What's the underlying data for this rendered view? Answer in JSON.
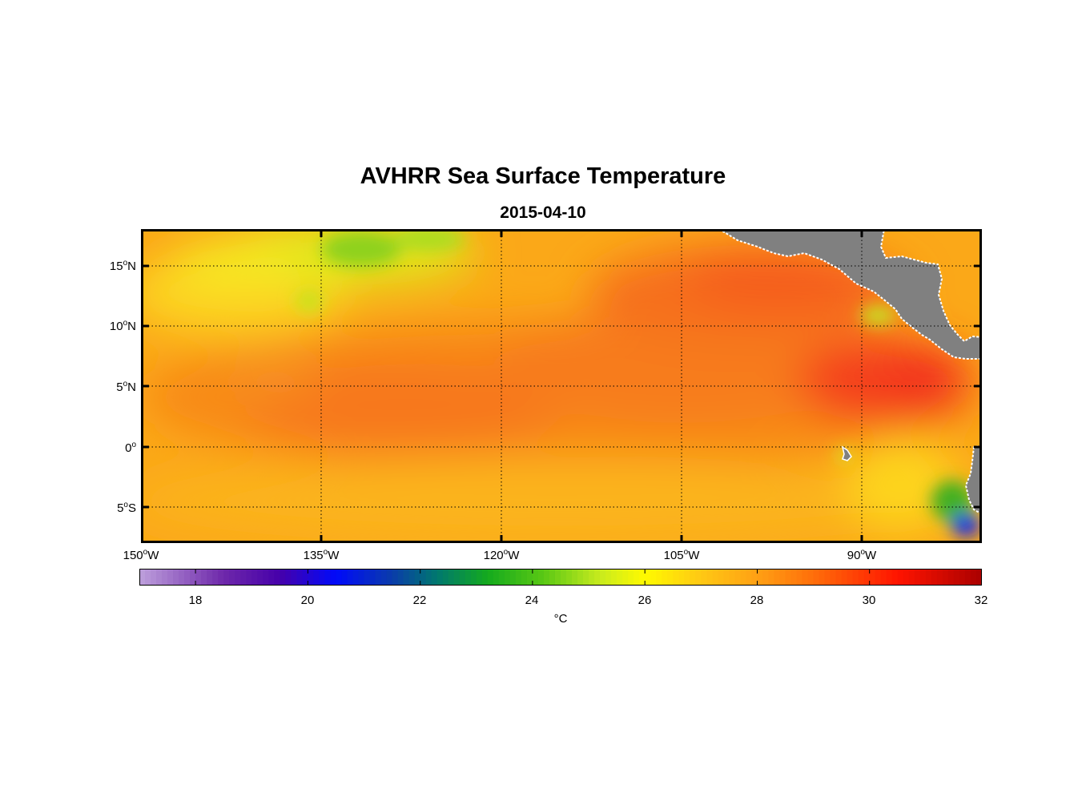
{
  "title": "AVHRR Sea Surface Temperature",
  "subtitle": "2015-04-10",
  "axes": {
    "lat_ticks": [
      {
        "deg": "15",
        "hemi": "N",
        "value": 15
      },
      {
        "deg": "10",
        "hemi": "N",
        "value": 10
      },
      {
        "deg": "5",
        "hemi": "N",
        "value": 5
      },
      {
        "deg": "0",
        "hemi": "",
        "value": 0
      },
      {
        "deg": "5",
        "hemi": "S",
        "value": -5
      }
    ],
    "lon_ticks": [
      {
        "deg": "150",
        "hemi": "W",
        "value": -150
      },
      {
        "deg": "135",
        "hemi": "W",
        "value": -135
      },
      {
        "deg": "120",
        "hemi": "W",
        "value": -120
      },
      {
        "deg": "105",
        "hemi": "W",
        "value": -105
      },
      {
        "deg": "90",
        "hemi": "W",
        "value": -90
      }
    ],
    "degree_symbol": "o",
    "lat_range": [
      -8,
      18
    ],
    "lon_range": [
      -150,
      -80
    ]
  },
  "colorbar": {
    "range": [
      17,
      32
    ],
    "tick_labels": [
      "18",
      "20",
      "22",
      "24",
      "26",
      "28",
      "30",
      "32"
    ],
    "tick_values": [
      18,
      20,
      22,
      24,
      26,
      28,
      30,
      32
    ],
    "unit": "°C"
  },
  "colors": {
    "land": "#808080",
    "coast": "#ffffff",
    "frame": "#000000"
  }
}
